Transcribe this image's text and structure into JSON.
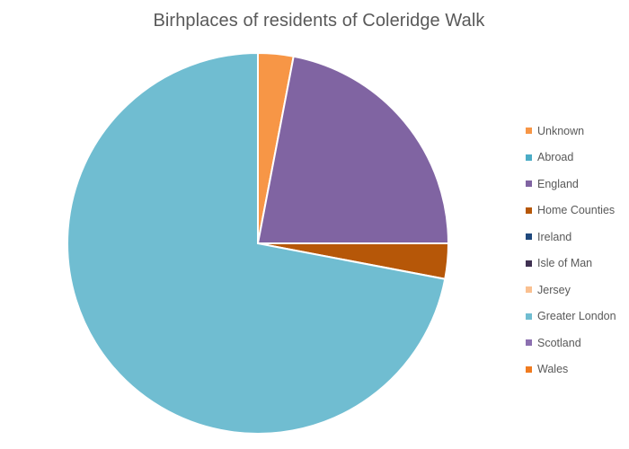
{
  "chart_data": {
    "type": "pie",
    "title": "Birhplaces of residents of Coleridge Walk",
    "categories": [
      "Unknown",
      "Abroad",
      "England",
      "Home Counties",
      "Ireland",
      "Isle of Man",
      "Jersey",
      "Greater London",
      "Scotland",
      "Wales"
    ],
    "values": [
      3,
      0,
      22,
      3,
      0,
      0,
      0,
      72,
      0,
      0
    ],
    "colors": [
      "#F79646",
      "#4BACC6",
      "#8064A2",
      "#C0504D",
      "#1F497D",
      "#403152",
      "#FAC090",
      "#70BDD1",
      "#8C70B0",
      "#F07B20"
    ],
    "legend_position": "right"
  }
}
